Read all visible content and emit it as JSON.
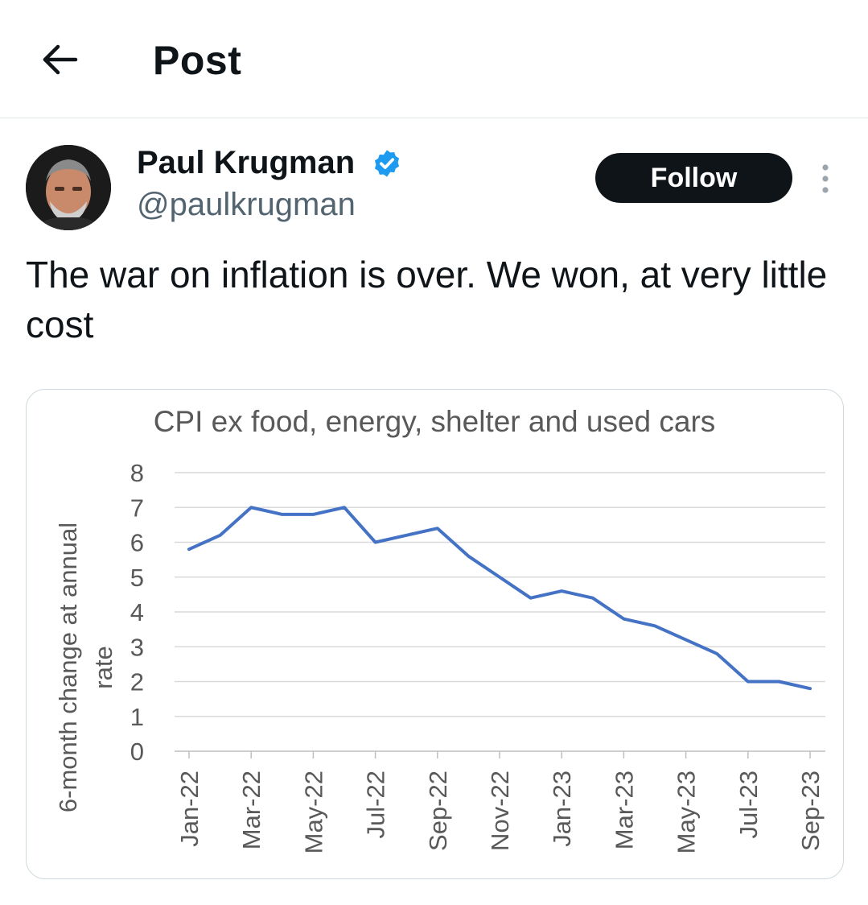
{
  "header": {
    "title": "Post",
    "back_icon": "arrow-left-icon"
  },
  "author": {
    "name": "Paul Krugman",
    "handle": "@paulkrugman",
    "verified": true,
    "verified_color": "#1d9bf0",
    "follow_label": "Follow"
  },
  "tweet": {
    "text": "The war on inflation is over. We won, at very little cost"
  },
  "chart_data": {
    "type": "line",
    "title": "CPI ex food, energy, shelter and used cars",
    "ylabel": "6-month change at annual rate",
    "xlabel": "",
    "ylim": [
      0,
      8
    ],
    "yticks": [
      "0",
      "1",
      "2",
      "3",
      "4",
      "5",
      "6",
      "7",
      "8"
    ],
    "grid": true,
    "categories": [
      "Jan-22",
      "Feb-22",
      "Mar-22",
      "Apr-22",
      "May-22",
      "Jun-22",
      "Jul-22",
      "Aug-22",
      "Sep-22",
      "Oct-22",
      "Nov-22",
      "Dec-22",
      "Jan-23",
      "Feb-23",
      "Mar-23",
      "Apr-23",
      "May-23",
      "Jun-23",
      "Jul-23",
      "Aug-23",
      "Sep-23"
    ],
    "xtick_labels": [
      "Jan-22",
      "Mar-22",
      "May-22",
      "Jul-22",
      "Sep-22",
      "Nov-22",
      "Jan-23",
      "Mar-23",
      "May-23",
      "Jul-23",
      "Sep-23"
    ],
    "series": [
      {
        "values": [
          5.8,
          6.2,
          7.0,
          6.8,
          6.8,
          7.0,
          6.0,
          6.2,
          6.4,
          5.6,
          5.0,
          4.4,
          4.6,
          4.4,
          3.8,
          3.6,
          3.2,
          2.8,
          2.0,
          2.0,
          1.8
        ],
        "color": "#4472c4"
      }
    ]
  }
}
